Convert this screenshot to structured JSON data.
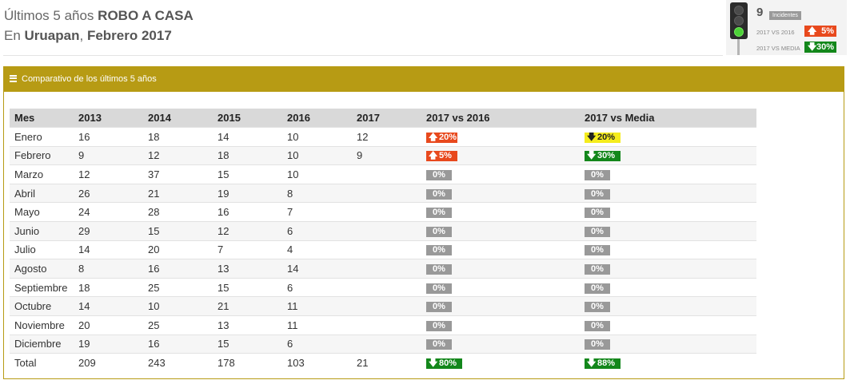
{
  "header": {
    "line1_prefix": "Últimos 5 años ",
    "line1_bold": "ROBO A CASA",
    "line2_prefix": "En ",
    "line2_city": "Uruapan",
    "line2_sep": ", ",
    "line2_date": "Febrero 2017"
  },
  "indicator": {
    "count": "9",
    "count_label": "Incidentes",
    "vs2016_label": "2017 VS 2016",
    "vs2016_value": "5%",
    "vs2016_arrow": "🡅",
    "vs2016_color": "#e8491d",
    "vsmedia_label": "2017 VS MEDIA",
    "vsmedia_value": "30%",
    "vsmedia_arrow": "🡇",
    "vsmedia_color": "#13871b",
    "light_status": "green"
  },
  "panel": {
    "title": "Comparativo de los últimos 5 años"
  },
  "table": {
    "headers": [
      "Mes",
      "2013",
      "2014",
      "2015",
      "2016",
      "2017",
      "2017 vs 2016",
      "2017 vs Media"
    ],
    "rows": [
      {
        "mes": "Enero",
        "y2013": "16",
        "y2014": "18",
        "y2015": "14",
        "y2016": "10",
        "y2017": "12",
        "vs2016": "20%",
        "vs2016_type": "up",
        "vsmedia": "20%",
        "vsmedia_type": "down-yellow"
      },
      {
        "mes": "Febrero",
        "y2013": "9",
        "y2014": "12",
        "y2015": "18",
        "y2016": "10",
        "y2017": "9",
        "vs2016": "5%",
        "vs2016_type": "up",
        "vsmedia": "30%",
        "vsmedia_type": "down-green"
      },
      {
        "mes": "Marzo",
        "y2013": "12",
        "y2014": "37",
        "y2015": "15",
        "y2016": "10",
        "y2017": "",
        "vs2016": "0%",
        "vs2016_type": "zero",
        "vsmedia": "0%",
        "vsmedia_type": "zero"
      },
      {
        "mes": "Abril",
        "y2013": "26",
        "y2014": "21",
        "y2015": "19",
        "y2016": "8",
        "y2017": "",
        "vs2016": "0%",
        "vs2016_type": "zero",
        "vsmedia": "0%",
        "vsmedia_type": "zero"
      },
      {
        "mes": "Mayo",
        "y2013": "24",
        "y2014": "28",
        "y2015": "16",
        "y2016": "7",
        "y2017": "",
        "vs2016": "0%",
        "vs2016_type": "zero",
        "vsmedia": "0%",
        "vsmedia_type": "zero"
      },
      {
        "mes": "Junio",
        "y2013": "29",
        "y2014": "15",
        "y2015": "12",
        "y2016": "6",
        "y2017": "",
        "vs2016": "0%",
        "vs2016_type": "zero",
        "vsmedia": "0%",
        "vsmedia_type": "zero"
      },
      {
        "mes": "Julio",
        "y2013": "14",
        "y2014": "20",
        "y2015": "7",
        "y2016": "4",
        "y2017": "",
        "vs2016": "0%",
        "vs2016_type": "zero",
        "vsmedia": "0%",
        "vsmedia_type": "zero"
      },
      {
        "mes": "Agosto",
        "y2013": "8",
        "y2014": "16",
        "y2015": "13",
        "y2016": "14",
        "y2017": "",
        "vs2016": "0%",
        "vs2016_type": "zero",
        "vsmedia": "0%",
        "vsmedia_type": "zero"
      },
      {
        "mes": "Septiembre",
        "y2013": "18",
        "y2014": "25",
        "y2015": "15",
        "y2016": "6",
        "y2017": "",
        "vs2016": "0%",
        "vs2016_type": "zero",
        "vsmedia": "0%",
        "vsmedia_type": "zero"
      },
      {
        "mes": "Octubre",
        "y2013": "14",
        "y2014": "10",
        "y2015": "21",
        "y2016": "11",
        "y2017": "",
        "vs2016": "0%",
        "vs2016_type": "zero",
        "vsmedia": "0%",
        "vsmedia_type": "zero"
      },
      {
        "mes": "Noviembre",
        "y2013": "20",
        "y2014": "25",
        "y2015": "13",
        "y2016": "11",
        "y2017": "",
        "vs2016": "0%",
        "vs2016_type": "zero",
        "vsmedia": "0%",
        "vsmedia_type": "zero"
      },
      {
        "mes": "Diciembre",
        "y2013": "19",
        "y2014": "16",
        "y2015": "15",
        "y2016": "6",
        "y2017": "",
        "vs2016": "0%",
        "vs2016_type": "zero",
        "vsmedia": "0%",
        "vsmedia_type": "zero"
      },
      {
        "mes": "Total",
        "y2013": "209",
        "y2014": "243",
        "y2015": "178",
        "y2016": "103",
        "y2017": "21",
        "vs2016": "80%",
        "vs2016_type": "down-green",
        "vsmedia": "88%",
        "vsmedia_type": "down-green"
      }
    ]
  },
  "icons": {
    "up_arrow": "🡅",
    "down_arrow": "🡇"
  },
  "colors": {
    "accent": "#b79b14",
    "up": "#e8491d",
    "down_green": "#13871b",
    "down_yellow": "#f5ec1d",
    "zero": "#999999"
  }
}
